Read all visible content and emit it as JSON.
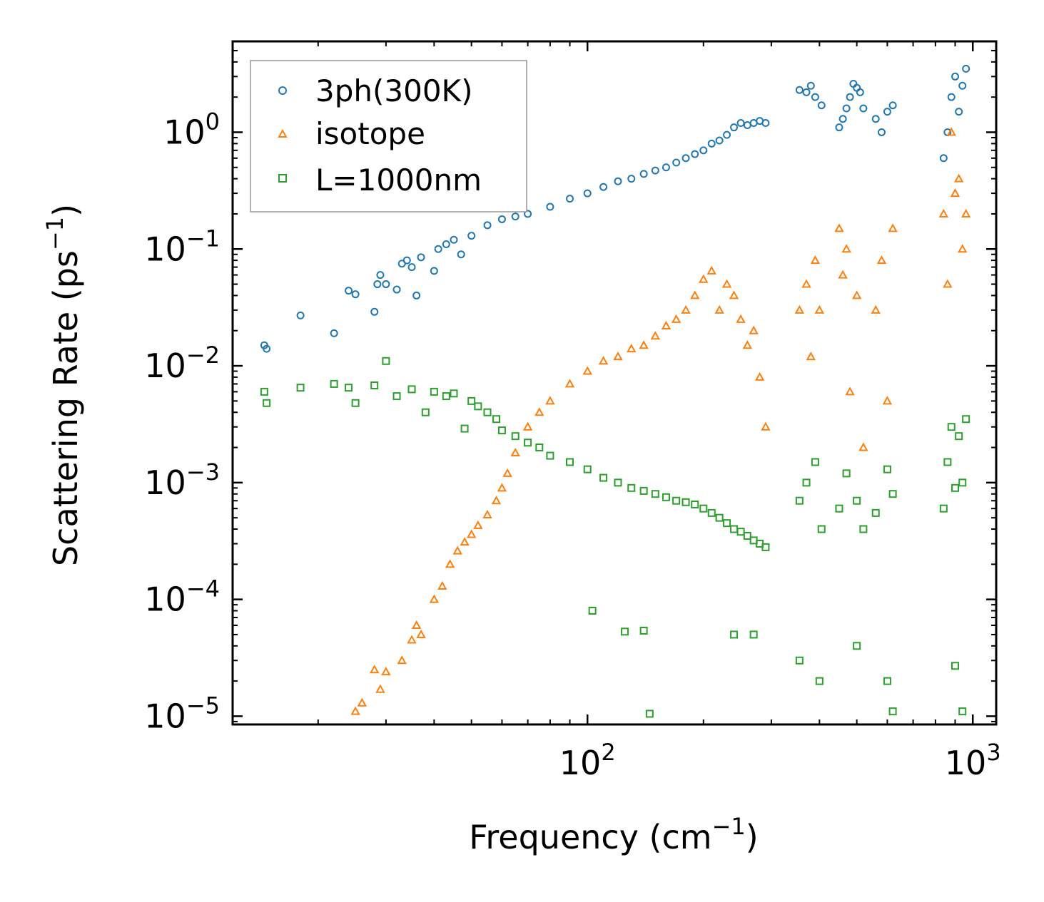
{
  "chart_data": {
    "type": "scatter",
    "xscale": "log",
    "yscale": "log",
    "xlim": [
      12,
      1150
    ],
    "ylim": [
      8.5e-06,
      6.0
    ],
    "xlabel": {
      "main": "Frequency (cm",
      "sup": "−1",
      "end": ")"
    },
    "ylabel": {
      "main": "Scattering Rate (ps",
      "sup": "−1",
      "end": ")"
    },
    "xticks": [
      {
        "value": 100,
        "base": "10",
        "exp": "2"
      },
      {
        "value": 1000,
        "base": "10",
        "exp": "3"
      }
    ],
    "yticks": [
      {
        "value": 1,
        "base": "10",
        "exp": "0"
      },
      {
        "value": 0.1,
        "base": "10",
        "exp": "−1"
      },
      {
        "value": 0.01,
        "base": "10",
        "exp": "−2"
      },
      {
        "value": 0.001,
        "base": "10",
        "exp": "−3"
      },
      {
        "value": 0.0001,
        "base": "10",
        "exp": "−4"
      },
      {
        "value": 1e-05,
        "base": "10",
        "exp": "−5"
      }
    ],
    "legend": {
      "position": "top-left"
    },
    "series": [
      {
        "name": "3ph(300K)",
        "marker": "circle",
        "color": "#1f77b4",
        "points": [
          [
            14.5,
            0.015
          ],
          [
            14.7,
            0.014
          ],
          [
            18,
            0.027
          ],
          [
            22,
            0.019
          ],
          [
            24,
            0.044
          ],
          [
            25,
            0.041
          ],
          [
            28,
            0.029
          ],
          [
            28.5,
            0.05
          ],
          [
            29,
            0.06
          ],
          [
            30,
            0.05
          ],
          [
            32,
            0.045
          ],
          [
            33,
            0.075
          ],
          [
            34,
            0.08
          ],
          [
            35,
            0.07
          ],
          [
            36,
            0.04
          ],
          [
            37,
            0.085
          ],
          [
            40,
            0.065
          ],
          [
            41,
            0.1
          ],
          [
            43,
            0.11
          ],
          [
            45,
            0.12
          ],
          [
            47,
            0.09
          ],
          [
            50,
            0.13
          ],
          [
            55,
            0.16
          ],
          [
            60,
            0.18
          ],
          [
            65,
            0.19
          ],
          [
            70,
            0.2
          ],
          [
            80,
            0.23
          ],
          [
            90,
            0.27
          ],
          [
            100,
            0.3
          ],
          [
            110,
            0.34
          ],
          [
            120,
            0.38
          ],
          [
            130,
            0.4
          ],
          [
            140,
            0.44
          ],
          [
            150,
            0.47
          ],
          [
            160,
            0.5
          ],
          [
            170,
            0.55
          ],
          [
            180,
            0.6
          ],
          [
            190,
            0.65
          ],
          [
            200,
            0.7
          ],
          [
            210,
            0.8
          ],
          [
            220,
            0.85
          ],
          [
            230,
            0.95
          ],
          [
            240,
            1.1
          ],
          [
            250,
            1.2
          ],
          [
            260,
            1.15
          ],
          [
            270,
            1.2
          ],
          [
            280,
            1.25
          ],
          [
            290,
            1.2
          ],
          [
            355,
            2.3
          ],
          [
            370,
            2.2
          ],
          [
            380,
            2.5
          ],
          [
            390,
            2.0
          ],
          [
            405,
            1.7
          ],
          [
            450,
            1.1
          ],
          [
            460,
            1.3
          ],
          [
            470,
            1.6
          ],
          [
            480,
            2.0
          ],
          [
            490,
            2.6
          ],
          [
            500,
            2.4
          ],
          [
            510,
            2.2
          ],
          [
            520,
            1.6
          ],
          [
            560,
            1.3
          ],
          [
            580,
            1.0
          ],
          [
            600,
            1.5
          ],
          [
            620,
            1.7
          ],
          [
            840,
            0.6
          ],
          [
            860,
            1.0
          ],
          [
            880,
            2.0
          ],
          [
            900,
            3.0
          ],
          [
            920,
            1.5
          ],
          [
            940,
            2.5
          ],
          [
            960,
            3.5
          ]
        ]
      },
      {
        "name": "isotope",
        "marker": "triangle",
        "color": "#ff7f0e",
        "points": [
          [
            25,
            1.1e-05
          ],
          [
            26,
            1.3e-05
          ],
          [
            28,
            2.5e-05
          ],
          [
            29,
            1.7e-05
          ],
          [
            30,
            2.4e-05
          ],
          [
            33,
            3e-05
          ],
          [
            35,
            4.5e-05
          ],
          [
            36,
            6e-05
          ],
          [
            37,
            5e-05
          ],
          [
            40,
            0.0001
          ],
          [
            42,
            0.00013
          ],
          [
            44,
            0.0002
          ],
          [
            46,
            0.00026
          ],
          [
            48,
            0.00031
          ],
          [
            50,
            0.00036
          ],
          [
            52,
            0.00043
          ],
          [
            55,
            0.00053
          ],
          [
            58,
            0.0007
          ],
          [
            60,
            0.0009
          ],
          [
            62,
            0.0012
          ],
          [
            65,
            0.0018
          ],
          [
            70,
            0.003
          ],
          [
            75,
            0.004
          ],
          [
            80,
            0.005
          ],
          [
            90,
            0.007
          ],
          [
            100,
            0.009
          ],
          [
            110,
            0.011
          ],
          [
            120,
            0.012
          ],
          [
            130,
            0.014
          ],
          [
            140,
            0.015
          ],
          [
            150,
            0.018
          ],
          [
            160,
            0.022
          ],
          [
            170,
            0.025
          ],
          [
            180,
            0.03
          ],
          [
            190,
            0.04
          ],
          [
            200,
            0.055
          ],
          [
            210,
            0.065
          ],
          [
            220,
            0.03
          ],
          [
            230,
            0.05
          ],
          [
            240,
            0.04
          ],
          [
            250,
            0.025
          ],
          [
            260,
            0.015
          ],
          [
            270,
            0.02
          ],
          [
            280,
            0.008
          ],
          [
            290,
            0.003
          ],
          [
            355,
            0.03
          ],
          [
            370,
            0.05
          ],
          [
            380,
            0.012
          ],
          [
            390,
            0.08
          ],
          [
            400,
            0.03
          ],
          [
            450,
            0.15
          ],
          [
            460,
            0.06
          ],
          [
            470,
            0.1
          ],
          [
            480,
            0.006
          ],
          [
            500,
            0.04
          ],
          [
            520,
            0.002
          ],
          [
            560,
            0.03
          ],
          [
            580,
            0.08
          ],
          [
            600,
            0.005
          ],
          [
            620,
            0.15
          ],
          [
            840,
            0.2
          ],
          [
            860,
            0.05
          ],
          [
            880,
            1.0
          ],
          [
            900,
            0.3
          ],
          [
            920,
            0.4
          ],
          [
            940,
            0.1
          ],
          [
            960,
            0.2
          ]
        ]
      },
      {
        "name": "L=1000nm",
        "marker": "square",
        "color": "#2ca02c",
        "points": [
          [
            14.5,
            0.006
          ],
          [
            14.7,
            0.0048
          ],
          [
            18,
            0.0065
          ],
          [
            22,
            0.007
          ],
          [
            24,
            0.0065
          ],
          [
            25,
            0.0048
          ],
          [
            28,
            0.0068
          ],
          [
            30,
            0.011
          ],
          [
            32,
            0.0055
          ],
          [
            35,
            0.0063
          ],
          [
            38,
            0.004
          ],
          [
            40,
            0.006
          ],
          [
            43,
            0.0055
          ],
          [
            45,
            0.0058
          ],
          [
            48,
            0.0029
          ],
          [
            50,
            0.005
          ],
          [
            52,
            0.0045
          ],
          [
            55,
            0.004
          ],
          [
            58,
            0.0035
          ],
          [
            60,
            0.0028
          ],
          [
            65,
            0.0025
          ],
          [
            70,
            0.0022
          ],
          [
            75,
            0.002
          ],
          [
            80,
            0.0017
          ],
          [
            90,
            0.0015
          ],
          [
            100,
            0.0013
          ],
          [
            110,
            0.0011
          ],
          [
            120,
            0.001
          ],
          [
            130,
            0.0009
          ],
          [
            140,
            0.00085
          ],
          [
            150,
            0.0008
          ],
          [
            160,
            0.00075
          ],
          [
            170,
            0.0007
          ],
          [
            180,
            0.00068
          ],
          [
            190,
            0.00065
          ],
          [
            200,
            0.0006
          ],
          [
            210,
            0.00055
          ],
          [
            220,
            0.0005
          ],
          [
            230,
            0.00045
          ],
          [
            240,
            0.0004
          ],
          [
            250,
            0.00038
          ],
          [
            260,
            0.00035
          ],
          [
            270,
            0.00032
          ],
          [
            280,
            0.0003
          ],
          [
            290,
            0.00028
          ],
          [
            355,
            0.0007
          ],
          [
            370,
            0.001
          ],
          [
            390,
            0.0015
          ],
          [
            405,
            0.0004
          ],
          [
            450,
            0.0006
          ],
          [
            470,
            0.0012
          ],
          [
            500,
            0.0007
          ],
          [
            520,
            0.0004
          ],
          [
            560,
            0.00055
          ],
          [
            600,
            0.0013
          ],
          [
            620,
            0.0008
          ],
          [
            840,
            0.0006
          ],
          [
            860,
            0.0015
          ],
          [
            880,
            0.003
          ],
          [
            900,
            0.0009
          ],
          [
            920,
            0.0025
          ],
          [
            940,
            0.001
          ],
          [
            960,
            0.0035
          ],
          [
            103,
            8e-05
          ],
          [
            125,
            5.3e-05
          ],
          [
            140,
            5.4e-05
          ],
          [
            145,
            1.05e-05
          ],
          [
            240,
            5e-05
          ],
          [
            270,
            5e-05
          ],
          [
            355,
            3e-05
          ],
          [
            400,
            2e-05
          ],
          [
            500,
            4e-05
          ],
          [
            600,
            2e-05
          ],
          [
            620,
            1.1e-05
          ],
          [
            900,
            2.7e-05
          ],
          [
            940,
            1.1e-05
          ]
        ]
      }
    ]
  }
}
